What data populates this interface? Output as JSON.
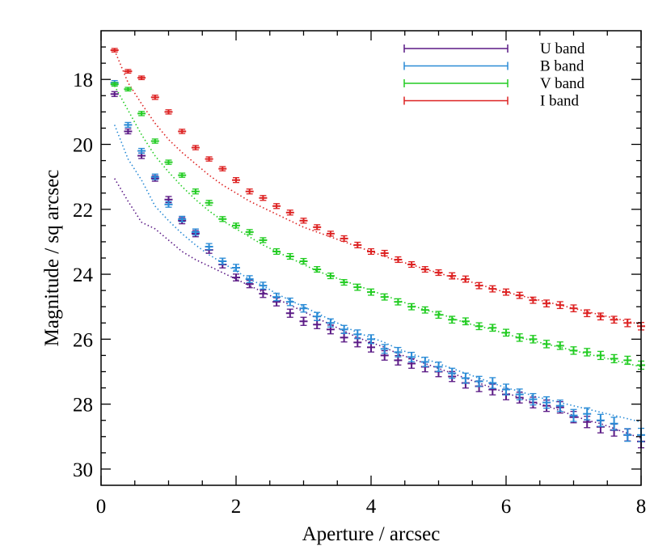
{
  "chart_data": {
    "type": "scatter",
    "xlabel": "Aperture / arcsec",
    "ylabel": "Magnitude / sq arcsec",
    "xlim": [
      0,
      8
    ],
    "ylim": [
      30.5,
      16.5
    ],
    "y_inverted": true,
    "x_ticks": [
      0,
      2,
      4,
      6,
      8
    ],
    "y_ticks": [
      18,
      20,
      22,
      24,
      26,
      28,
      30
    ],
    "grid": false,
    "legend_position": "top-right",
    "x": [
      0.2,
      0.4,
      0.6,
      0.8,
      1.0,
      1.2,
      1.4,
      1.6,
      1.8,
      2.0,
      2.2,
      2.4,
      2.6,
      2.8,
      3.0,
      3.2,
      3.4,
      3.6,
      3.8,
      4.0,
      4.2,
      4.4,
      4.6,
      4.8,
      5.0,
      5.2,
      5.4,
      5.6,
      5.8,
      6.0,
      6.2,
      6.4,
      6.6,
      6.8,
      7.0,
      7.2,
      7.4,
      7.6,
      7.8,
      8.0
    ],
    "series": [
      {
        "name": "U band",
        "color": "#5b1a86",
        "points": [
          18.45,
          19.6,
          20.35,
          21.05,
          21.7,
          22.35,
          22.75,
          23.25,
          23.7,
          24.1,
          24.3,
          24.6,
          24.85,
          25.2,
          25.45,
          25.55,
          25.7,
          25.95,
          26.1,
          26.25,
          26.5,
          26.65,
          26.75,
          26.85,
          27.0,
          27.15,
          27.35,
          27.45,
          27.55,
          27.7,
          27.8,
          27.95,
          28.05,
          28.1,
          28.4,
          28.55,
          28.7,
          28.8,
          28.95,
          29.15
        ],
        "errors": [
          0.05,
          0.05,
          0.06,
          0.06,
          0.07,
          0.07,
          0.07,
          0.08,
          0.08,
          0.08,
          0.09,
          0.09,
          0.1,
          0.1,
          0.1,
          0.1,
          0.11,
          0.11,
          0.11,
          0.12,
          0.12,
          0.12,
          0.12,
          0.13,
          0.13,
          0.13,
          0.13,
          0.14,
          0.14,
          0.14,
          0.14,
          0.14,
          0.15,
          0.15,
          0.15,
          0.15,
          0.16,
          0.16,
          0.16,
          0.17
        ],
        "model": [
          21.05,
          21.75,
          22.4,
          22.6,
          22.95,
          23.3,
          23.55,
          23.75,
          23.95,
          24.15,
          24.35,
          24.55,
          24.75,
          24.95,
          25.15,
          25.35,
          25.55,
          25.75,
          25.95,
          26.1,
          26.25,
          26.45,
          26.6,
          26.75,
          26.9,
          27.05,
          27.2,
          27.35,
          27.5,
          27.65,
          27.8,
          27.95,
          28.05,
          28.2,
          28.35,
          28.5,
          28.6,
          28.75,
          28.9,
          29.05
        ]
      },
      {
        "name": "B band",
        "color": "#2a8bd6",
        "points": [
          18.1,
          19.4,
          20.2,
          21.0,
          21.85,
          22.3,
          22.7,
          23.15,
          23.6,
          23.8,
          24.15,
          24.35,
          24.7,
          24.85,
          25.05,
          25.3,
          25.5,
          25.7,
          25.85,
          26.0,
          26.3,
          26.4,
          26.55,
          26.7,
          26.85,
          27.05,
          27.2,
          27.3,
          27.35,
          27.55,
          27.7,
          27.85,
          27.95,
          28.05,
          28.35,
          28.3,
          28.5,
          28.6,
          28.95,
          28.95
        ],
        "errors": [
          0.04,
          0.05,
          0.05,
          0.06,
          0.06,
          0.06,
          0.07,
          0.07,
          0.07,
          0.08,
          0.08,
          0.08,
          0.09,
          0.09,
          0.09,
          0.1,
          0.1,
          0.1,
          0.11,
          0.11,
          0.11,
          0.12,
          0.12,
          0.12,
          0.12,
          0.13,
          0.13,
          0.13,
          0.14,
          0.14,
          0.14,
          0.15,
          0.15,
          0.15,
          0.16,
          0.16,
          0.16,
          0.17,
          0.17,
          0.18
        ],
        "model": [
          19.4,
          20.45,
          21.1,
          21.9,
          22.35,
          22.75,
          23.1,
          23.4,
          23.65,
          23.9,
          24.15,
          24.35,
          24.6,
          24.8,
          25.0,
          25.2,
          25.4,
          25.6,
          25.8,
          25.95,
          26.1,
          26.3,
          26.45,
          26.6,
          26.75,
          26.9,
          27.05,
          27.2,
          27.35,
          27.5,
          27.6,
          27.75,
          27.85,
          27.95,
          28.05,
          28.15,
          28.25,
          28.35,
          28.45,
          28.55
        ]
      },
      {
        "name": "V band",
        "color": "#22cc22",
        "points": [
          18.15,
          18.3,
          19.05,
          19.9,
          20.55,
          20.95,
          21.45,
          21.8,
          22.3,
          22.5,
          22.7,
          22.95,
          23.3,
          23.45,
          23.6,
          23.85,
          24.05,
          24.25,
          24.4,
          24.55,
          24.7,
          24.85,
          25.0,
          25.1,
          25.25,
          25.4,
          25.45,
          25.6,
          25.65,
          25.8,
          25.95,
          26.0,
          26.15,
          26.2,
          26.35,
          26.4,
          26.5,
          26.6,
          26.65,
          26.8
        ],
        "errors": [
          0.03,
          0.03,
          0.04,
          0.04,
          0.04,
          0.04,
          0.05,
          0.05,
          0.05,
          0.05,
          0.05,
          0.05,
          0.06,
          0.06,
          0.06,
          0.06,
          0.06,
          0.06,
          0.07,
          0.07,
          0.07,
          0.07,
          0.07,
          0.07,
          0.08,
          0.08,
          0.08,
          0.08,
          0.08,
          0.08,
          0.09,
          0.09,
          0.09,
          0.09,
          0.09,
          0.09,
          0.1,
          0.1,
          0.1,
          0.1
        ],
        "model": [
          18.2,
          18.95,
          19.7,
          20.35,
          20.85,
          21.3,
          21.7,
          22.05,
          22.35,
          22.6,
          22.85,
          23.1,
          23.3,
          23.5,
          23.7,
          23.9,
          24.05,
          24.2,
          24.35,
          24.5,
          24.65,
          24.8,
          24.95,
          25.1,
          25.2,
          25.35,
          25.5,
          25.6,
          25.7,
          25.85,
          25.95,
          26.05,
          26.15,
          26.25,
          26.35,
          26.45,
          26.55,
          26.65,
          26.75,
          26.85
        ]
      },
      {
        "name": "I band",
        "color": "#dd2222",
        "points": [
          17.1,
          17.75,
          17.95,
          18.55,
          19.0,
          19.6,
          20.1,
          20.45,
          20.75,
          21.1,
          21.45,
          21.65,
          21.9,
          22.1,
          22.35,
          22.55,
          22.75,
          22.9,
          23.1,
          23.3,
          23.35,
          23.55,
          23.7,
          23.85,
          23.95,
          24.05,
          24.15,
          24.35,
          24.45,
          24.55,
          24.65,
          24.8,
          24.9,
          24.95,
          25.05,
          25.2,
          25.3,
          25.4,
          25.5,
          25.6
        ],
        "errors": [
          0.03,
          0.03,
          0.03,
          0.04,
          0.04,
          0.04,
          0.04,
          0.04,
          0.04,
          0.05,
          0.05,
          0.05,
          0.05,
          0.05,
          0.05,
          0.05,
          0.05,
          0.06,
          0.06,
          0.06,
          0.06,
          0.06,
          0.06,
          0.06,
          0.06,
          0.07,
          0.07,
          0.07,
          0.07,
          0.07,
          0.07,
          0.07,
          0.08,
          0.08,
          0.08,
          0.08,
          0.08,
          0.08,
          0.09,
          0.09
        ],
        "model": [
          17.1,
          18.1,
          18.75,
          19.35,
          19.85,
          20.25,
          20.6,
          20.95,
          21.25,
          21.5,
          21.75,
          21.95,
          22.15,
          22.35,
          22.55,
          22.7,
          22.85,
          23.0,
          23.15,
          23.3,
          23.45,
          23.6,
          23.7,
          23.85,
          23.95,
          24.1,
          24.2,
          24.3,
          24.45,
          24.55,
          24.65,
          24.75,
          24.85,
          24.95,
          25.05,
          25.15,
          25.25,
          25.35,
          25.45,
          25.55
        ]
      }
    ]
  }
}
